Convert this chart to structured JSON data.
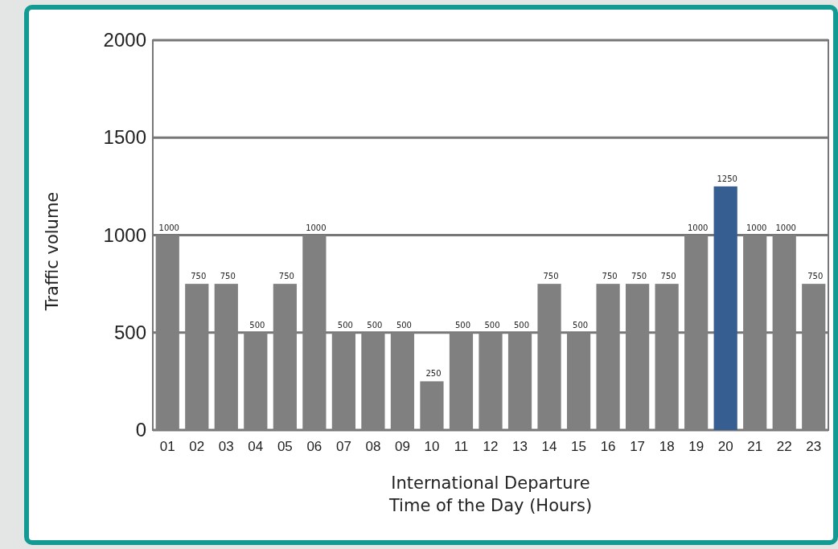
{
  "chart_data": {
    "type": "bar",
    "xlabel": "International Departure\nTime of the Day (Hours)",
    "ylabel": "Traffic volume",
    "categories": [
      "01",
      "02",
      "03",
      "04",
      "05",
      "06",
      "07",
      "08",
      "09",
      "10",
      "11",
      "12",
      "13",
      "14",
      "15",
      "16",
      "17",
      "18",
      "19",
      "20",
      "21",
      "22",
      "23"
    ],
    "values": [
      1000,
      750,
      750,
      500,
      750,
      1000,
      500,
      500,
      500,
      250,
      500,
      500,
      500,
      750,
      500,
      750,
      750,
      750,
      1000,
      1250,
      1000,
      1000,
      750
    ],
    "colors": [
      "#808080",
      "#808080",
      "#808080",
      "#808080",
      "#808080",
      "#808080",
      "#808080",
      "#808080",
      "#808080",
      "#808080",
      "#808080",
      "#808080",
      "#808080",
      "#808080",
      "#808080",
      "#808080",
      "#808080",
      "#808080",
      "#808080",
      "#365e90",
      "#808080",
      "#808080",
      "#808080"
    ],
    "ylim": [
      0,
      2000
    ],
    "yticks": [
      0,
      500,
      1000,
      1500,
      2000
    ],
    "grid": "y",
    "data_labels": true
  }
}
